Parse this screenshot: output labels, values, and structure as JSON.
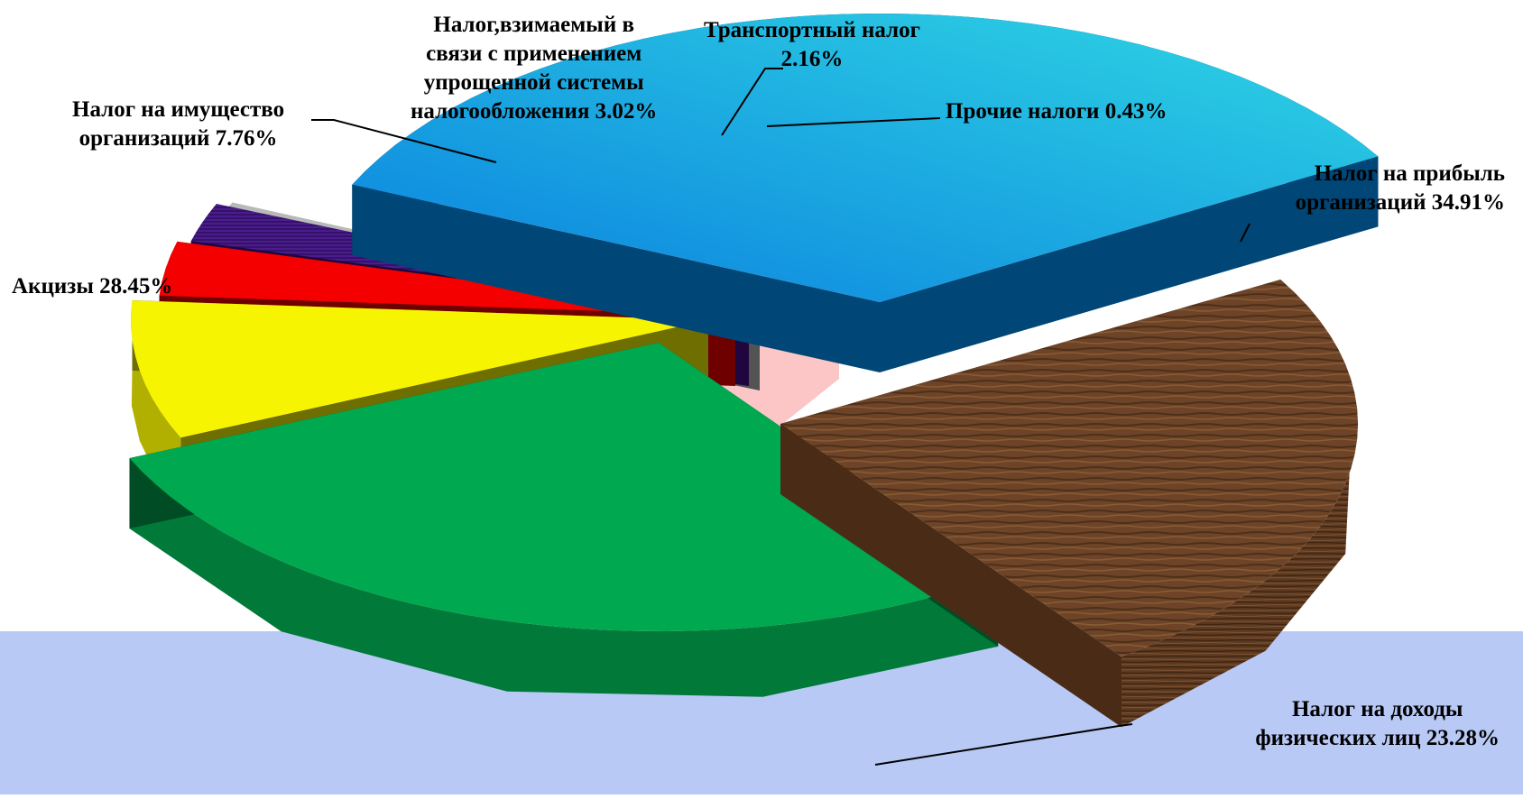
{
  "chart_data": {
    "type": "pie",
    "style": "3d-exploded",
    "unit": "%",
    "categories": [
      "Налог на прибыль организаций",
      "Налог на доходы физических лиц",
      "Акцизы",
      "Налог на имущество организаций",
      "Налог,взимаемый в связи с применением упрощенной системы налогообложения",
      "Транспортный налог",
      "Прочие налоги"
    ],
    "values": [
      34.91,
      23.28,
      28.45,
      7.76,
      3.02,
      2.16,
      0.43
    ],
    "colors": [
      "#1c9bd8",
      "#6b4428",
      "#00a84f",
      "#f6f400",
      "#f40000",
      "#4b1d8c",
      "#b9b9b9"
    ],
    "data_labels": [
      {
        "lines": [
          "Налог на прибыль",
          "организаций 34.91%"
        ]
      },
      {
        "lines": [
          "Налог на доходы",
          "физических лиц 23.28%"
        ]
      },
      {
        "lines": [
          "Акцизы 28.45%"
        ]
      },
      {
        "lines": [
          "Налог на имущество",
          "организаций 7.76%"
        ]
      },
      {
        "lines": [
          "Налог,взимаемый в",
          "связи с применением",
          "упрощенной системы",
          "налогообложения 3.02%"
        ]
      },
      {
        "lines": [
          "Транспортный налог",
          "2.16%"
        ]
      },
      {
        "lines": [
          "Прочие налоги 0.43%"
        ]
      }
    ],
    "legend": "none",
    "background": {
      "top": "#ffffff",
      "bottom": "#b8c9f5",
      "pattern": "#fcc6c6"
    }
  }
}
